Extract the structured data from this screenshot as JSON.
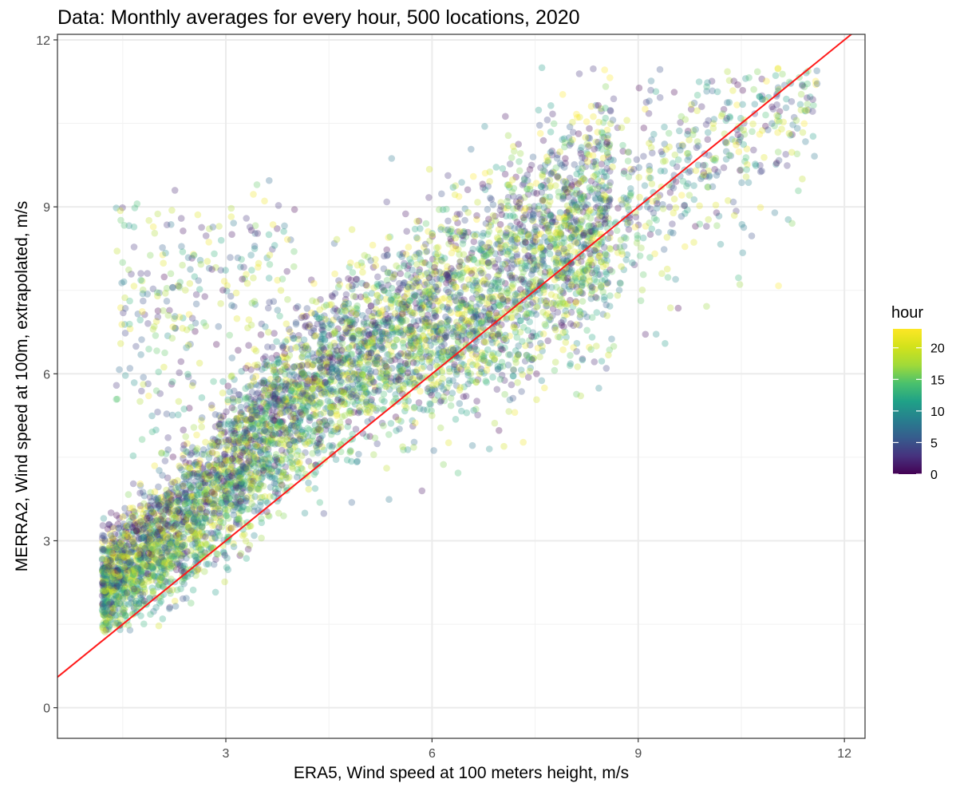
{
  "chart_data": {
    "type": "scatter",
    "title": "Data: Monthly averages for every hour, 500 locations, 2020",
    "xlabel": "ERA5, Wind speed at 100 meters height, m/s",
    "ylabel": "MERRA2, Wind speed at 100m, extrapolated, m/s",
    "xlim": [
      0.55,
      12.3
    ],
    "ylim": [
      -0.55,
      12.1
    ],
    "x_ticks": [
      3,
      6,
      9,
      12
    ],
    "y_ticks": [
      0,
      3,
      6,
      9,
      12
    ],
    "x_tick_labels": [
      "3",
      "6",
      "9",
      "12"
    ],
    "y_tick_labels": [
      "0",
      "3",
      "6",
      "9",
      "12"
    ],
    "grid": true,
    "point_alpha": 0.3,
    "n_points_approx": 6000,
    "reference_line": {
      "type": "y=x",
      "color": "#ff1a1a",
      "x": [
        0.55,
        12.3
      ],
      "y": [
        0.55,
        12.3
      ]
    },
    "color_variable": "hour",
    "color_range": [
      0,
      23
    ],
    "legend": {
      "title": "hour",
      "position": "right",
      "ticks": [
        0,
        5,
        10,
        15,
        20
      ],
      "tick_labels": [
        "0",
        "5",
        "10",
        "15",
        "20"
      ]
    },
    "series_description": "Points cluster along the reference line, spreading from about (1.2, 2.0) up to (11.8, 11.0); a denser band above the line around x 3–6, y 5–8"
  }
}
